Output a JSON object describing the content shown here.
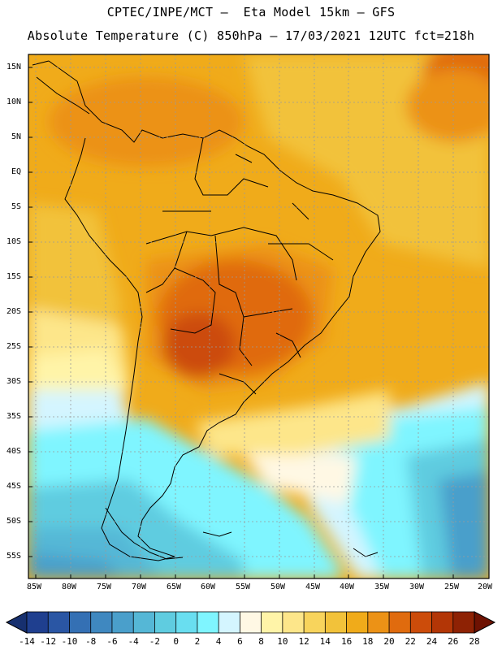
{
  "header": {
    "line1": "CPTEC/INPE/MCT —  Eta Model 15km — GFS",
    "line2": "Absolute Temperature (C) 850hPa — 17/03/2021 12UTC fct=218h"
  },
  "map": {
    "lat_labels": [
      "15N",
      "10N",
      "5N",
      "EQ",
      "5S",
      "10S",
      "15S",
      "20S",
      "25S",
      "30S",
      "35S",
      "40S",
      "45S",
      "50S",
      "55S"
    ],
    "lon_labels": [
      "85W",
      "80W",
      "75W",
      "70W",
      "65W",
      "60W",
      "55W",
      "50W",
      "45W",
      "40W",
      "35W",
      "30W",
      "25W",
      "20W"
    ]
  },
  "colorbar": {
    "labels": [
      "-14",
      "-12",
      "-10",
      "-8",
      "-6",
      "-4",
      "-2",
      "0",
      "2",
      "4",
      "6",
      "8",
      "10",
      "12",
      "14",
      "16",
      "18",
      "20",
      "22",
      "24",
      "26",
      "28"
    ],
    "colors": [
      "#1f3f8f",
      "#2a56a4",
      "#3470b4",
      "#3f88c0",
      "#4a9fcb",
      "#55b7d6",
      "#5fcce0",
      "#69def0",
      "#7ff5ff",
      "#d4f5ff",
      "#fff8e4",
      "#fff4a8",
      "#fde68a",
      "#f8d45c",
      "#f2c23a",
      "#f0ab1a",
      "#ec9216",
      "#e06b0e",
      "#cc4c0a",
      "#b33606",
      "#8e2204"
    ]
  }
}
